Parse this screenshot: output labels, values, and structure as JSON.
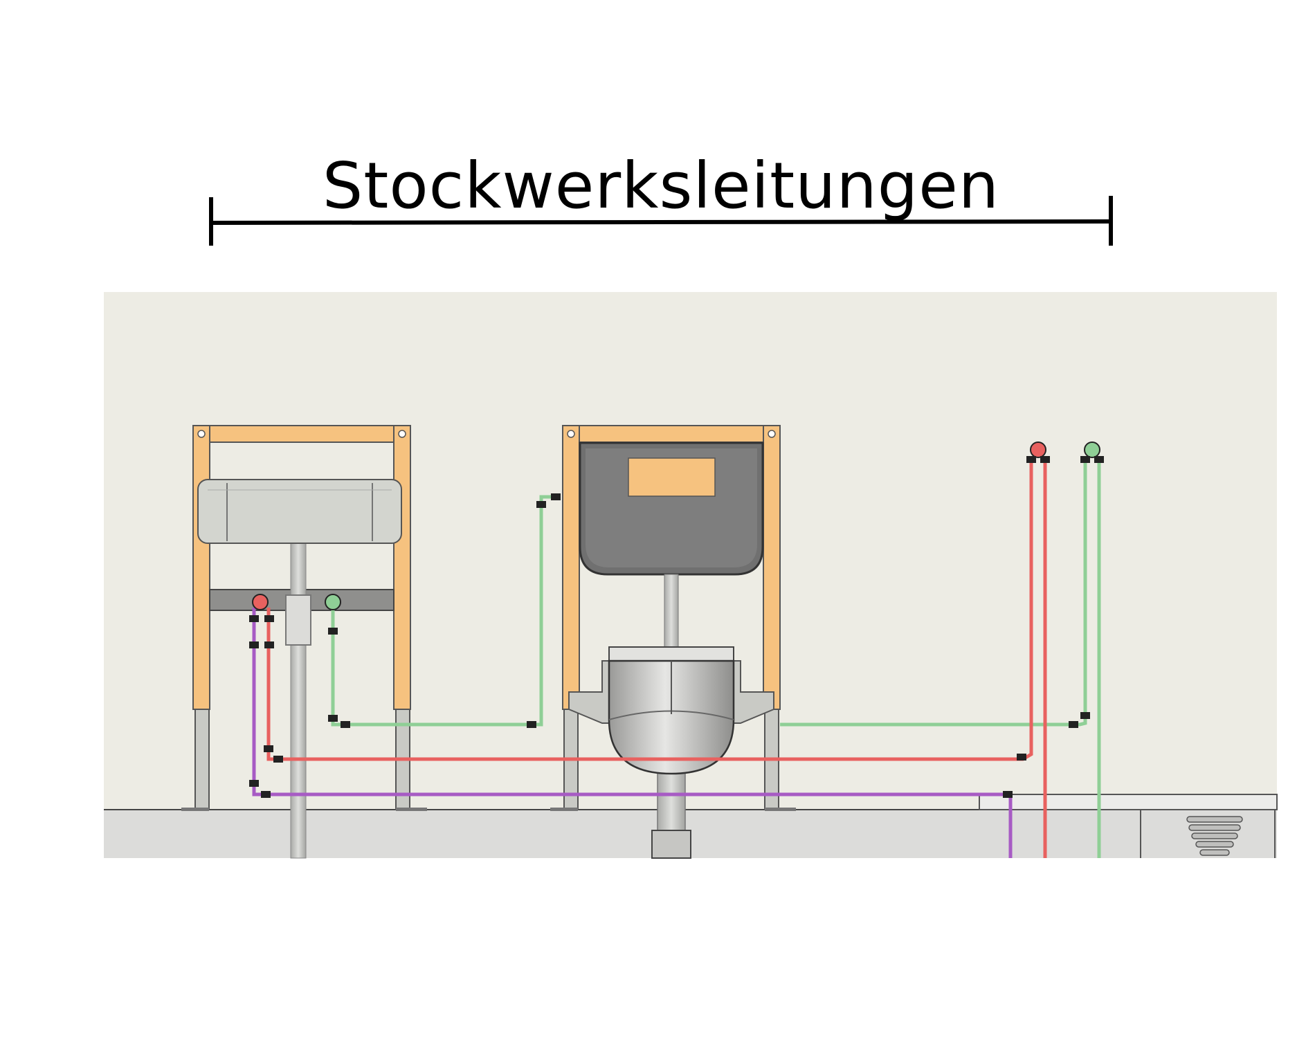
{
  "title": "Stockwerksleitungen",
  "colors": {
    "background_panel": "#edece4",
    "frame_orange": "#f6c27f",
    "hot_water": "#e8615f",
    "cold_water": "#8fcf96",
    "circulation": "#a75bc4",
    "fixture_grey": "#c9cac5",
    "cistern_dark": "#707070",
    "floor": "#dcdcda"
  },
  "icons": [
    "washbasin-frame",
    "wc-frame",
    "cistern",
    "toilet-bowl",
    "washbasin",
    "floor-drain",
    "pipe-valve"
  ]
}
